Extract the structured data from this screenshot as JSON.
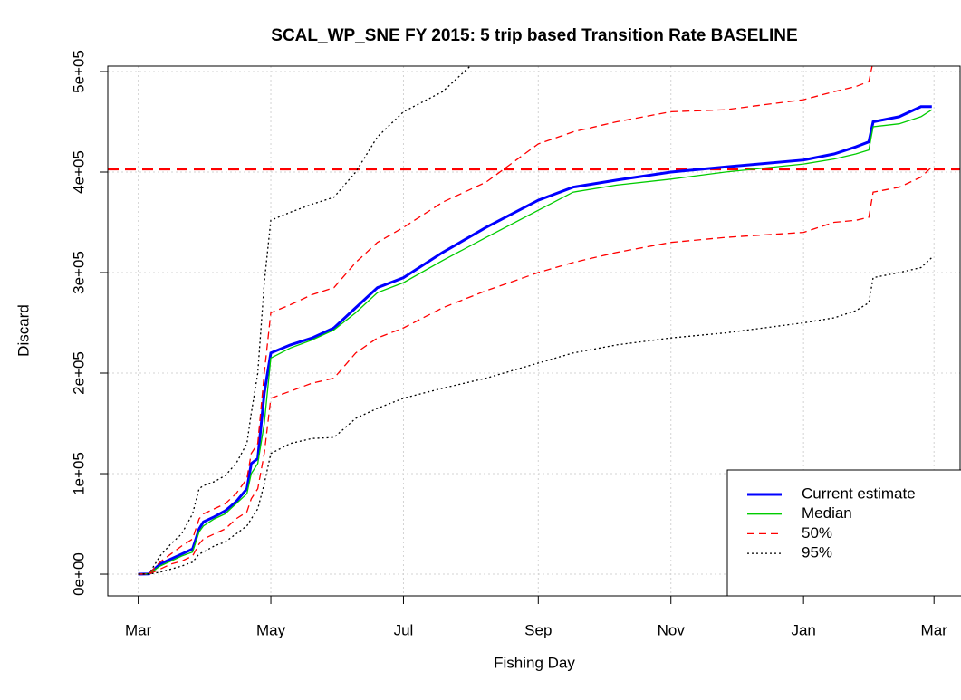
{
  "chart_data": {
    "type": "line",
    "title": "SCAL_WP_SNE FY 2015: 5 trip based Transition Rate BASELINE",
    "x_label": "Fishing Day",
    "y_label": "Discard",
    "x": [
      0,
      5,
      10,
      15,
      20,
      25,
      28,
      30,
      35,
      40,
      45,
      50,
      52,
      55,
      58,
      61,
      70,
      80,
      90,
      100,
      110,
      122,
      140,
      160,
      184,
      200,
      220,
      245,
      270,
      306,
      320,
      330,
      336,
      338,
      350,
      360,
      365
    ],
    "xlim": [
      -14,
      378
    ],
    "xticks": [
      {
        "value": 0,
        "label": "Mar"
      },
      {
        "value": 61,
        "label": "May"
      },
      {
        "value": 122,
        "label": "Jul"
      },
      {
        "value": 184,
        "label": "Sep"
      },
      {
        "value": 245,
        "label": "Nov"
      },
      {
        "value": 306,
        "label": "Jan"
      },
      {
        "value": 366,
        "label": "Mar"
      }
    ],
    "ylim": [
      -21600,
      505400
    ],
    "yticks": [
      {
        "value": 0,
        "label": "0e+00"
      },
      {
        "value": 100000,
        "label": "1e+05"
      },
      {
        "value": 200000,
        "label": "2e+05"
      },
      {
        "value": 300000,
        "label": "3e+05"
      },
      {
        "value": 400000,
        "label": "4e+05"
      },
      {
        "value": 500000,
        "label": "5e+05"
      }
    ],
    "grid": true,
    "legend_position": "bottomright",
    "reference_line": {
      "value": 403000,
      "color": "#ff0000"
    },
    "series": [
      {
        "name": "Current estimate",
        "color": "#0000ff",
        "dash": "solid",
        "width": 3,
        "values": [
          0,
          200,
          10000,
          15000,
          20000,
          25000,
          45000,
          52000,
          57000,
          63000,
          72000,
          85000,
          110000,
          115000,
          180000,
          220000,
          228000,
          235000,
          245000,
          265000,
          285000,
          295000,
          320000,
          345000,
          372000,
          385000,
          392000,
          400000,
          405000,
          412000,
          418000,
          425000,
          430000,
          450000,
          455000,
          465000,
          465000
        ]
      },
      {
        "name": "Median",
        "color": "#00cc00",
        "dash": "solid",
        "width": 1.3,
        "values": [
          0,
          300,
          8000,
          13000,
          18000,
          22000,
          42000,
          48000,
          55000,
          60000,
          70000,
          80000,
          100000,
          110000,
          150000,
          215000,
          225000,
          233000,
          243000,
          260000,
          280000,
          290000,
          312000,
          335000,
          362000,
          380000,
          387000,
          393000,
          400000,
          408000,
          413000,
          418000,
          422000,
          445000,
          448000,
          455000,
          462000
        ]
      },
      {
        "name": "50%",
        "color": "#ff0000",
        "dash": "dashed",
        "width": 1.3,
        "upper": [
          0,
          500,
          12000,
          20000,
          28000,
          35000,
          55000,
          60000,
          65000,
          70000,
          80000,
          95000,
          120000,
          130000,
          200000,
          260000,
          268000,
          278000,
          285000,
          310000,
          330000,
          345000,
          370000,
          390000,
          428000,
          440000,
          450000,
          460000,
          462000,
          472000,
          480000,
          485000,
          490000,
          510000,
          null,
          null,
          null
        ],
        "lower": [
          0,
          0,
          5000,
          10000,
          13000,
          18000,
          30000,
          35000,
          40000,
          45000,
          55000,
          62000,
          75000,
          85000,
          120000,
          175000,
          182000,
          190000,
          195000,
          220000,
          235000,
          245000,
          265000,
          282000,
          300000,
          310000,
          320000,
          330000,
          335000,
          340000,
          350000,
          352000,
          355000,
          380000,
          385000,
          395000,
          405000
        ]
      },
      {
        "name": "95%",
        "color": "#000000",
        "dash": "dotted",
        "width": 1.3,
        "upper": [
          0,
          500,
          18000,
          30000,
          40000,
          60000,
          85000,
          88000,
          92000,
          98000,
          110000,
          130000,
          160000,
          200000,
          290000,
          352000,
          360000,
          368000,
          375000,
          400000,
          435000,
          460000,
          480000,
          520000,
          null,
          null,
          null,
          null,
          null,
          null,
          null,
          null,
          null,
          null,
          null,
          null,
          null
        ],
        "lower": [
          0,
          0,
          2000,
          5000,
          8000,
          12000,
          20000,
          22000,
          28000,
          32000,
          40000,
          48000,
          55000,
          65000,
          90000,
          120000,
          130000,
          135000,
          136000,
          155000,
          165000,
          175000,
          185000,
          195000,
          210000,
          220000,
          228000,
          235000,
          240000,
          250000,
          255000,
          262000,
          270000,
          295000,
          300000,
          305000,
          315000
        ]
      }
    ]
  }
}
